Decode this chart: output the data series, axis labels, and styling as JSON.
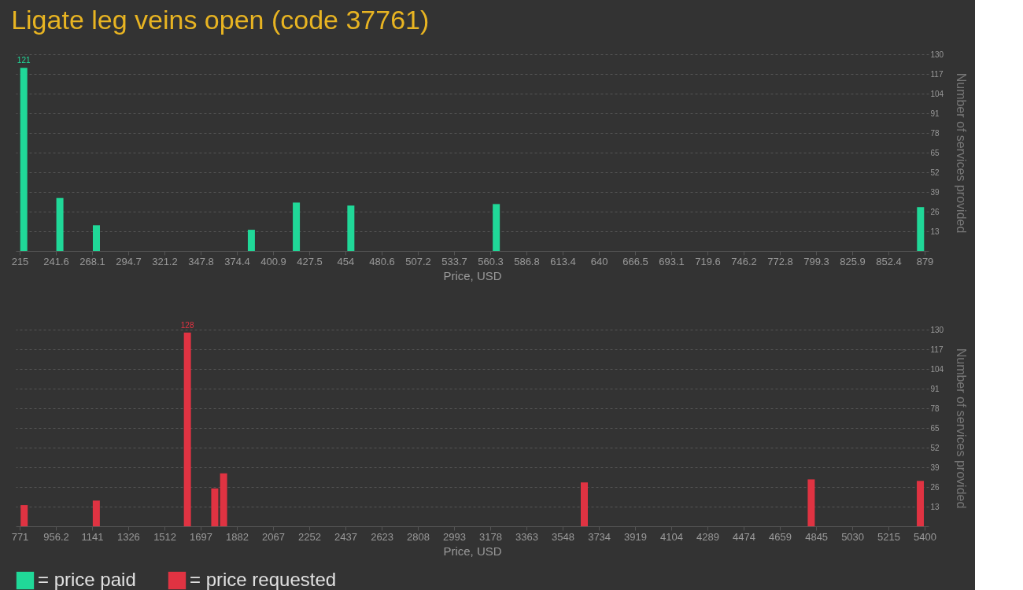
{
  "chart_data": [
    {
      "type": "bar",
      "title": "Ligate leg veins open (code 37761)",
      "xlabel": "Price, USD",
      "ylabel": "Number of services provided",
      "x": [
        218,
        244.5,
        271.3,
        385,
        418,
        458,
        564.7,
        876
      ],
      "series": [
        {
          "name": "= price paid",
          "color": "#20d898",
          "values": [
            121,
            35,
            17,
            14,
            32,
            30,
            31,
            29
          ],
          "value_labels": [
            "121",
            null,
            null,
            null,
            null,
            null,
            null,
            null
          ]
        }
      ],
      "xlim": [
        215,
        879
      ],
      "xticks": [
        215,
        241.6,
        268.1,
        294.7,
        321.2,
        347.8,
        374.4,
        400.9,
        427.5,
        454,
        480.6,
        507.2,
        533.7,
        560.3,
        586.8,
        613.4,
        640,
        666.5,
        693.1,
        719.6,
        746.2,
        772.8,
        799.3,
        825.9,
        852.4,
        879
      ],
      "ylim": [
        0,
        130
      ],
      "yticks": [
        13,
        26,
        39,
        52,
        65,
        78,
        91,
        104,
        117,
        130
      ],
      "grid": "y",
      "legend": "bottom"
    },
    {
      "type": "bar",
      "xlabel": "Price, USD",
      "ylabel": "Number of services provided",
      "x": [
        794,
        1163,
        1629,
        1769,
        1814,
        3659,
        4820,
        5378
      ],
      "series": [
        {
          "name": "= price requested",
          "color": "#e03342",
          "values": [
            14,
            17,
            128,
            25,
            35,
            29,
            31,
            30
          ],
          "value_labels": [
            null,
            null,
            "128",
            null,
            null,
            null,
            null,
            null
          ]
        }
      ],
      "xlim": [
        771,
        5400
      ],
      "xticks": [
        771,
        956.2,
        1141,
        1326,
        1512,
        1697,
        1882,
        2067,
        2252,
        2437,
        2623,
        2808,
        2993,
        3178,
        3363,
        3548,
        3734,
        3919,
        4104,
        4289,
        4474,
        4659,
        4845,
        5030,
        5215,
        5400
      ],
      "ylim": [
        0,
        130
      ],
      "yticks": [
        13,
        26,
        39,
        52,
        65,
        78,
        91,
        104,
        117,
        130
      ],
      "grid": "y",
      "legend": "bottom"
    }
  ]
}
